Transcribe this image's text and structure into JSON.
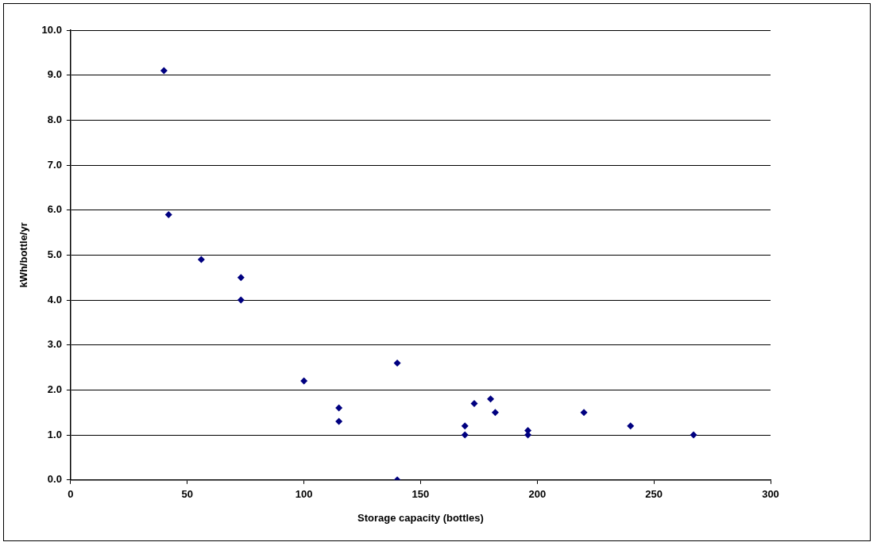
{
  "chart_data": {
    "type": "scatter",
    "xlabel": "Storage capacity (bottles)",
    "ylabel": "kWh/bottle/yr",
    "series": [
      {
        "color": "#000080",
        "x": [
          40,
          42,
          56,
          73,
          73,
          100,
          115,
          115,
          140,
          140,
          169,
          169,
          173,
          180,
          182,
          196,
          196,
          220,
          240,
          267
        ],
        "values": [
          9.1,
          5.9,
          4.9,
          4.5,
          4.0,
          2.2,
          1.6,
          1.3,
          2.6,
          0.0,
          1.2,
          1.0,
          1.7,
          1.8,
          1.5,
          1.1,
          1.0,
          1.5,
          1.2,
          1.0
        ]
      }
    ],
    "xlim": [
      0,
      300
    ],
    "xticks": [
      0,
      50,
      100,
      150,
      200,
      250,
      300
    ],
    "ylim": [
      0,
      10
    ],
    "yticks": [
      {
        "value": 0,
        "label": "0.0"
      },
      {
        "value": 1,
        "label": "1.0"
      },
      {
        "value": 2,
        "label": "2.0"
      },
      {
        "value": 3,
        "label": "3.0"
      },
      {
        "value": 4,
        "label": "4.0"
      },
      {
        "value": 5,
        "label": "5.0"
      },
      {
        "value": 6,
        "label": "6.0"
      },
      {
        "value": 7,
        "label": "7.0"
      },
      {
        "value": 8,
        "label": "8.0"
      },
      {
        "value": 9,
        "label": "9.0"
      },
      {
        "value": 10,
        "label": "10.0"
      }
    ],
    "grid": "y",
    "marker": "diamond",
    "legend": false
  }
}
